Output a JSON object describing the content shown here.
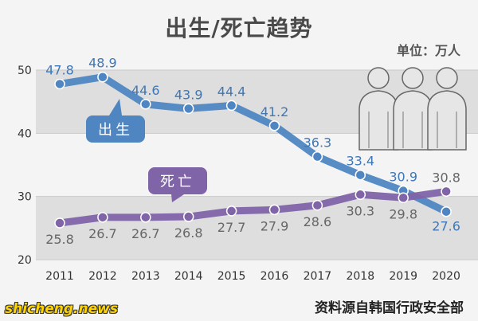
{
  "chart_data": {
    "type": "line",
    "title": "出生/死亡趋势",
    "unit_label": "单位：万人",
    "source": "资料源自韩国行政安全部",
    "watermark": "shicheng.news",
    "categories": [
      "2011",
      "2012",
      "2013",
      "2014",
      "2015",
      "2016",
      "2017",
      "2018",
      "2019",
      "2020"
    ],
    "yticks": [
      "20",
      "30",
      "40",
      "50"
    ],
    "ylim": [
      20,
      50
    ],
    "series": [
      {
        "name": "出生",
        "color": "#4f86c2",
        "label_color": "#3f77b6",
        "values": [
          47.8,
          48.9,
          44.6,
          43.9,
          44.4,
          41.2,
          36.3,
          33.4,
          30.9,
          27.6
        ]
      },
      {
        "name": "死亡",
        "color": "#8064a8",
        "label_color": "#666666",
        "values": [
          25.8,
          26.7,
          26.7,
          26.8,
          27.7,
          27.9,
          28.6,
          30.3,
          29.8,
          30.8
        ]
      }
    ],
    "grid": true,
    "icon": "people-icon"
  }
}
